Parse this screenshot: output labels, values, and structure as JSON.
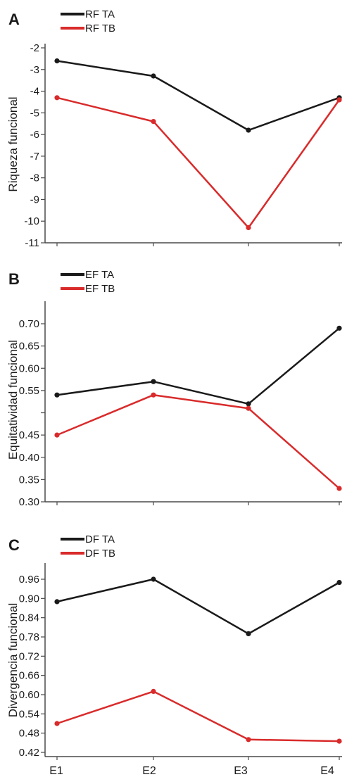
{
  "chart_data": [
    {
      "type": "line",
      "panel_letter": "A",
      "ylabel": "Riqueza funcional",
      "yticks": [
        "-2",
        "-3",
        "-4",
        "-5",
        "-6",
        "-7",
        "-8",
        "-9",
        "-10",
        "-11"
      ],
      "ylim": [
        -11,
        -2
      ],
      "categories": [
        "E1",
        "E2",
        "E3",
        "E4"
      ],
      "series": [
        {
          "name": "RF TA",
          "color": "#1a1a1a",
          "values": [
            -2.6,
            -3.3,
            -5.8,
            -4.3
          ]
        },
        {
          "name": "RF TB",
          "color": "#d92b2b",
          "values": [
            -4.3,
            -5.4,
            -10.3,
            -4.4
          ]
        }
      ],
      "legend": "top-left",
      "grid": false
    },
    {
      "type": "line",
      "panel_letter": "B",
      "ylabel": "Equitatividad funcional",
      "yticks": [
        "0.70",
        "0.65",
        "0.60",
        "0.55",
        "0.45",
        "0.40",
        "0.35",
        "0.30"
      ],
      "ylim": [
        0.3,
        0.7
      ],
      "categories": [
        "E1",
        "E2",
        "E3",
        "E4"
      ],
      "series": [
        {
          "name": "EF TA",
          "color": "#1a1a1a",
          "values": [
            0.54,
            0.57,
            0.52,
            0.69
          ]
        },
        {
          "name": "EF TB",
          "color": "#d92b2b",
          "values": [
            0.45,
            0.54,
            0.51,
            0.33
          ]
        }
      ],
      "legend": "top-left",
      "grid": false
    },
    {
      "type": "line",
      "panel_letter": "C",
      "ylabel": "Divergencia funcional",
      "yticks": [
        "0.96",
        "0.90",
        "0.84",
        "0.78",
        "0.72",
        "0.66",
        "0.60",
        "0.54",
        "0.48",
        "0.42"
      ],
      "ylim": [
        0.42,
        0.96
      ],
      "categories": [
        "E1",
        "E2",
        "E3",
        "E4"
      ],
      "series": [
        {
          "name": "DF TA",
          "color": "#1a1a1a",
          "values": [
            0.89,
            0.96,
            0.79,
            0.95
          ]
        },
        {
          "name": "DF TB",
          "color": "#d92b2b",
          "values": [
            0.51,
            0.61,
            0.46,
            0.455
          ]
        }
      ],
      "legend": "top-left",
      "grid": false
    }
  ]
}
